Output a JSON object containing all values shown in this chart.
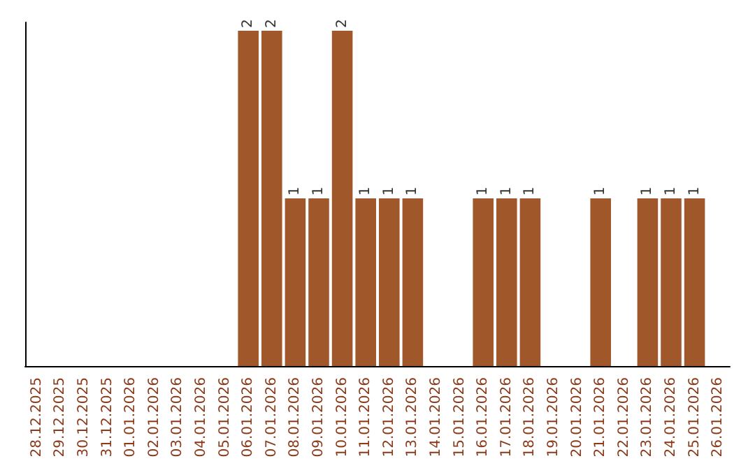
{
  "chart_data": {
    "type": "bar",
    "categories": [
      "28.12.2025",
      "29.12.2025",
      "30.12.2025",
      "31.12.2025",
      "01.01.2026",
      "02.01.2026",
      "03.01.2026",
      "04.01.2026",
      "05.01.2026",
      "06.01.2026",
      "07.01.2026",
      "08.01.2026",
      "09.01.2026",
      "10.01.2026",
      "11.01.2026",
      "12.01.2026",
      "13.01.2026",
      "14.01.2026",
      "15.01.2026",
      "16.01.2026",
      "17.01.2026",
      "18.01.2026",
      "19.01.2026",
      "20.01.2026",
      "21.01.2026",
      "22.01.2026",
      "23.01.2026",
      "24.01.2026",
      "25.01.2026",
      "26.01.2026"
    ],
    "values": [
      0,
      0,
      0,
      0,
      0,
      0,
      0,
      0,
      0,
      2,
      2,
      1,
      1,
      2,
      1,
      1,
      1,
      0,
      0,
      1,
      1,
      1,
      0,
      0,
      1,
      0,
      1,
      1,
      1,
      0
    ],
    "value_labels": [
      null,
      null,
      null,
      null,
      null,
      null,
      null,
      null,
      null,
      "2",
      "2",
      "1",
      "1",
      "2",
      "1",
      "1",
      "1",
      null,
      null,
      "1",
      "1",
      "1",
      null,
      null,
      "1",
      null,
      "1",
      "1",
      "1",
      null
    ],
    "color": "#a0582a",
    "ylim": [
      0,
      2.05
    ],
    "tick_labels": "x",
    "grid": false
  }
}
